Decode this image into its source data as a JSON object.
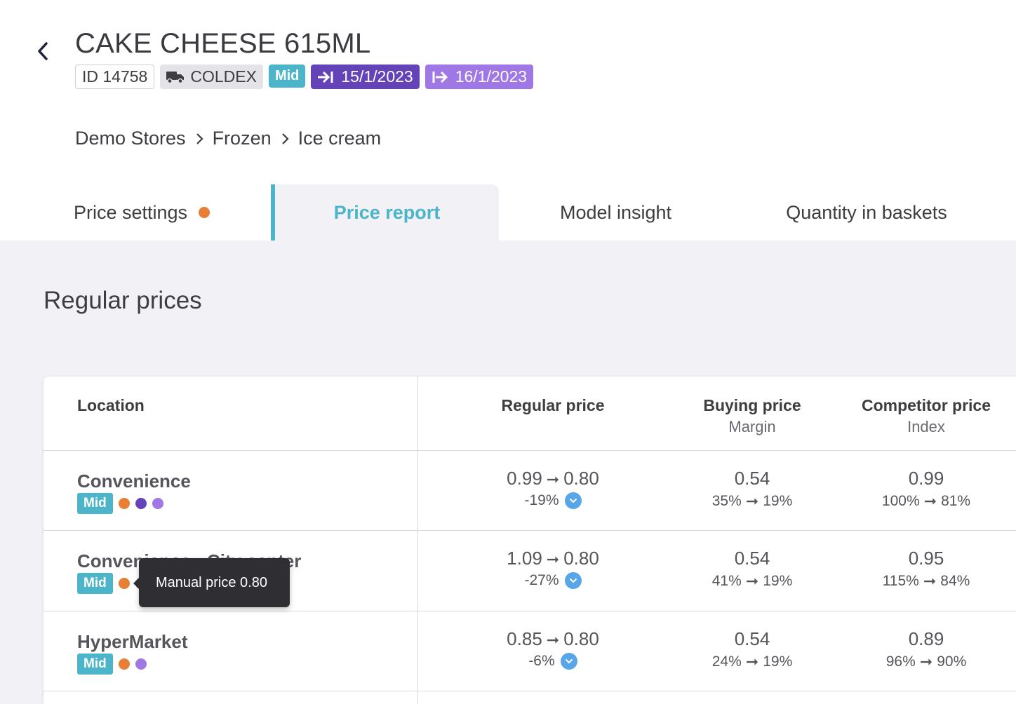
{
  "product": {
    "title": "CAKE CHEESE 615ML",
    "id_label": "ID 14758",
    "supplier": "COLDEX",
    "tier": "Mid",
    "start_date": "15/1/2023",
    "end_date": "16/1/2023"
  },
  "breadcrumb": [
    "Demo Stores",
    "Frozen",
    "Ice cream"
  ],
  "tabs": [
    {
      "label": "Price settings",
      "has_dot": true
    },
    {
      "label": "Price report",
      "active": true
    },
    {
      "label": "Model insight"
    },
    {
      "label": "Quantity in baskets"
    }
  ],
  "section_title": "Regular prices",
  "table": {
    "headers": {
      "location": "Location",
      "regular_price": "Regular price",
      "buying_price": "Buying price",
      "margin": "Margin",
      "competitor_price": "Competitor price",
      "index": "Index"
    },
    "arrow": "➞",
    "rows": [
      {
        "name": "Convenience",
        "tier": "Mid",
        "regular_from": "0.99",
        "regular_to": "0.80",
        "regular_change": "-19%",
        "buying": "0.54",
        "margin_from": "35%",
        "margin_to": "19%",
        "competitor": "0.99",
        "index_from": "100%",
        "index_to": "81%"
      },
      {
        "name": "Convenience - City center",
        "tier": "Mid",
        "regular_from": "1.09",
        "regular_to": "0.80",
        "regular_change": "-27%",
        "buying": "0.54",
        "margin_from": "41%",
        "margin_to": "19%",
        "competitor": "0.95",
        "index_from": "115%",
        "index_to": "84%"
      },
      {
        "name": "HyperMarket",
        "tier": "Mid",
        "regular_from": "0.85",
        "regular_to": "0.80",
        "regular_change": "-6%",
        "buying": "0.54",
        "margin_from": "24%",
        "margin_to": "19%",
        "competitor": "0.89",
        "index_from": "96%",
        "index_to": "90%"
      }
    ]
  },
  "tooltip": "Manual price 0.80",
  "colors": {
    "accent": "#4cb5c9",
    "orange_dot": "#e87f34",
    "purple_dark": "#6442b8",
    "purple_light": "#a078e6",
    "info_blue": "#58a6e8"
  },
  "icons": {
    "back": "chevron-left-icon",
    "supplier": "truck-icon",
    "start": "arrow-to-line-icon",
    "end": "arrow-from-line-icon",
    "breadcrumb_sep": "chevron-right-icon",
    "change": "chevron-down-circle-icon"
  }
}
